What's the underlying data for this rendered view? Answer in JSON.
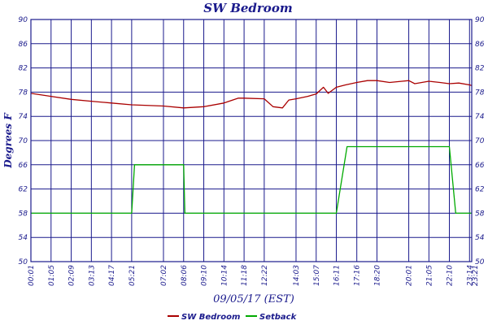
{
  "chart_data": {
    "type": "line",
    "title": "SW Bedroom",
    "xlabel": "09/05/17 (EST)",
    "ylabel": "Degrees F",
    "ylim": [
      50,
      90
    ],
    "yticks": [
      50,
      54,
      58,
      62,
      66,
      70,
      74,
      78,
      82,
      86,
      90
    ],
    "x_ticks": [
      "00:01",
      "01:05",
      "02:09",
      "03:13",
      "04:17",
      "05:21",
      "07:02",
      "08:06",
      "09:10",
      "10:14",
      "11:18",
      "12:22",
      "14:03",
      "15:07",
      "16:11",
      "17:16",
      "18:20",
      "20:01",
      "21:05",
      "22:10",
      "23:14",
      "23:21"
    ],
    "grid": true,
    "legend_position": "bottom",
    "colors": {
      "SW Bedroom": "#aa0000",
      "Setback": "#00aa00",
      "grid": "#1a1a8c",
      "text": "#1a1a8c"
    },
    "series": [
      {
        "name": "SW Bedroom",
        "x": [
          "00:01",
          "01:05",
          "02:09",
          "03:13",
          "04:17",
          "05:21",
          "07:02",
          "08:06",
          "09:10",
          "10:14",
          "11:00",
          "11:18",
          "12:22",
          "12:50",
          "13:20",
          "13:40",
          "14:03",
          "14:40",
          "15:07",
          "15:30",
          "15:45",
          "16:11",
          "16:40",
          "17:16",
          "17:50",
          "18:20",
          "19:00",
          "19:40",
          "20:01",
          "20:20",
          "21:05",
          "21:40",
          "22:10",
          "22:40",
          "23:14",
          "23:21"
        ],
        "values": [
          77.8,
          77.3,
          76.8,
          76.5,
          76.2,
          75.9,
          75.7,
          75.4,
          75.6,
          76.2,
          77.0,
          77.0,
          76.9,
          75.6,
          75.4,
          76.7,
          76.9,
          77.3,
          77.7,
          78.8,
          77.8,
          78.8,
          79.2,
          79.6,
          79.9,
          79.9,
          79.6,
          79.8,
          79.9,
          79.4,
          79.8,
          79.6,
          79.4,
          79.5,
          79.2,
          79.1
        ]
      },
      {
        "name": "Setback",
        "x": [
          "00:01",
          "05:21",
          "05:30",
          "07:02",
          "08:06",
          "08:10",
          "16:11",
          "16:45",
          "17:16",
          "22:10",
          "22:30",
          "23:21"
        ],
        "values": [
          58,
          58,
          66,
          66,
          66,
          58,
          58,
          69,
          69,
          69,
          58,
          58
        ]
      }
    ]
  }
}
